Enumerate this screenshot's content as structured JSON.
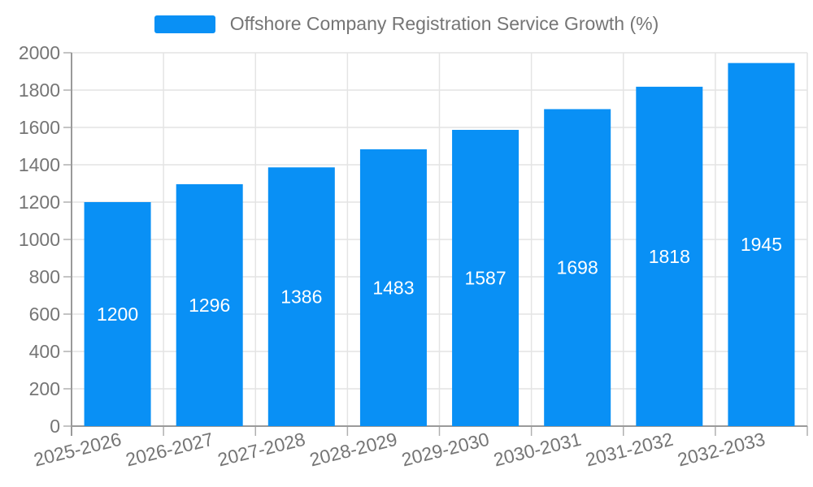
{
  "legend": {
    "label": "Offshore Company Registration Service Growth (%)"
  },
  "chart_data": {
    "type": "bar",
    "title": "Offshore Company Registration Service Growth (%)",
    "categories": [
      "2025-2026",
      "2026-2027",
      "2027-2028",
      "2028-2029",
      "2029-2030",
      "2030-2031",
      "2031-2032",
      "2032-2033"
    ],
    "values": [
      1200,
      1296,
      1386,
      1483,
      1587,
      1698,
      1818,
      1945
    ],
    "xlabel": "",
    "ylabel": "",
    "ylim": [
      0,
      2000
    ],
    "ytick_step": 200,
    "yticks": [
      0,
      200,
      400,
      600,
      800,
      1000,
      1200,
      1400,
      1600,
      1800,
      2000
    ],
    "grid": true,
    "legend_position": "top",
    "bar_label_position": "inside-center",
    "x_label_rotation_deg": -14,
    "colors": {
      "bar": "#0990f5",
      "axis_text": "#757575",
      "value_label_text": "#ffffff",
      "grid_line": "#e4e4e4",
      "axis_line": "#9a9a9a",
      "tick_line": "#b0b0b0",
      "background": "#ffffff"
    }
  }
}
